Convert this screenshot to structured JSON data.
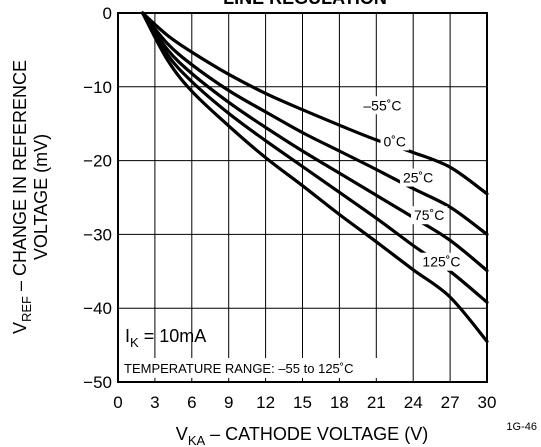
{
  "chart_data": {
    "type": "line",
    "title": "LINE REGULATION",
    "xlabel_main": "V",
    "xlabel_sub": "KA",
    "xlabel_rest": " – CATHODE VOLTAGE (V)",
    "ylabel_main": "V",
    "ylabel_sub": "REF",
    "ylabel_rest": " – CHANGE IN REFERENCE",
    "ylabel_line2": "VOLTAGE (mV)",
    "xlim": [
      0,
      30
    ],
    "ylim": [
      -50,
      0
    ],
    "xticks": [
      "0",
      "3",
      "6",
      "9",
      "12",
      "15",
      "18",
      "21",
      "24",
      "27",
      "30"
    ],
    "yticks": [
      "0",
      "−10",
      "−20",
      "−30",
      "−40",
      "−50"
    ],
    "grid": true,
    "condition_main": "I",
    "condition_sub": "K",
    "condition_rest": " = 10mA",
    "temperature_note": "TEMPERATURE RANGE: –55 to 125˚C",
    "figure_id": "1G-46",
    "series": [
      {
        "name": "–55˚C",
        "x": [
          2,
          4,
          6,
          9,
          12,
          15,
          18,
          21,
          24,
          27,
          30
        ],
        "y": [
          0,
          -3,
          -5.3,
          -8.3,
          -10.9,
          -13.1,
          -15.2,
          -17.2,
          -18.9,
          -20.9,
          -24.5
        ]
      },
      {
        "name": "0˚C",
        "x": [
          2,
          4,
          6,
          9,
          12,
          15,
          18,
          21,
          24,
          27,
          30
        ],
        "y": [
          0,
          -4.1,
          -7,
          -10.5,
          -13.4,
          -16.2,
          -18.7,
          -21.2,
          -23.8,
          -26.3,
          -30
        ]
      },
      {
        "name": "25˚C",
        "x": [
          2,
          4,
          6,
          9,
          12,
          15,
          18,
          21,
          24,
          27,
          30
        ],
        "y": [
          0,
          -4.9,
          -8.2,
          -12.1,
          -15.5,
          -18.7,
          -21.7,
          -24.7,
          -27.7,
          -30.8,
          -34.9
        ]
      },
      {
        "name": "75˚C",
        "x": [
          2,
          4,
          6,
          9,
          12,
          15,
          18,
          21,
          24,
          27,
          30
        ],
        "y": [
          0,
          -5.6,
          -9.3,
          -13.6,
          -17.3,
          -20.8,
          -24.3,
          -27.8,
          -31.5,
          -35,
          -39.2
        ]
      },
      {
        "name": "125˚C",
        "x": [
          2,
          4,
          6,
          9,
          12,
          15,
          18,
          21,
          24,
          27,
          30
        ],
        "y": [
          0,
          -6.3,
          -10.6,
          -15.3,
          -19.6,
          -23.4,
          -27.3,
          -31,
          -34.8,
          -38.5,
          -44.5
        ]
      }
    ]
  }
}
